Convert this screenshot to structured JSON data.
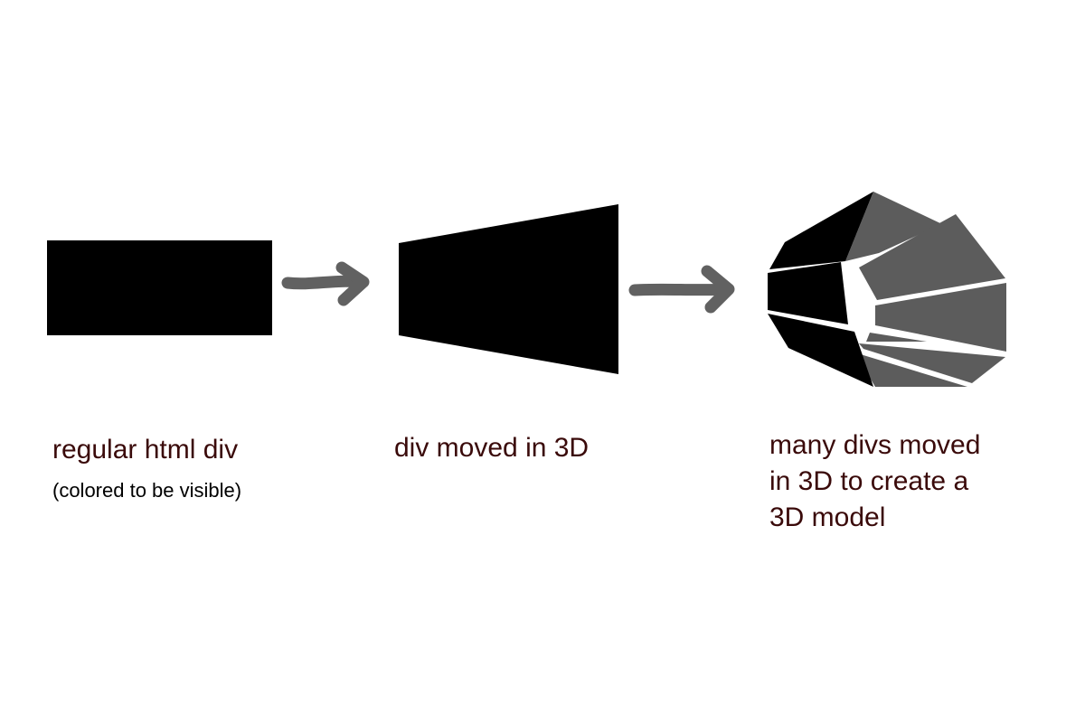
{
  "colors": {
    "shape_dark": "#000000",
    "shape_light": "#5c5c5c",
    "arrow": "#616161",
    "caption_text": "#3a0a0a",
    "background": "#ffffff"
  },
  "panels": [
    {
      "caption": "regular html div",
      "subcaption": "(colored to be visible)"
    },
    {
      "caption": "div moved in 3D"
    },
    {
      "caption_lines": [
        "many divs moved",
        "in 3D to create a",
        "3D model"
      ]
    }
  ],
  "icons": [
    "right-arrow-icon",
    "right-arrow-icon"
  ]
}
